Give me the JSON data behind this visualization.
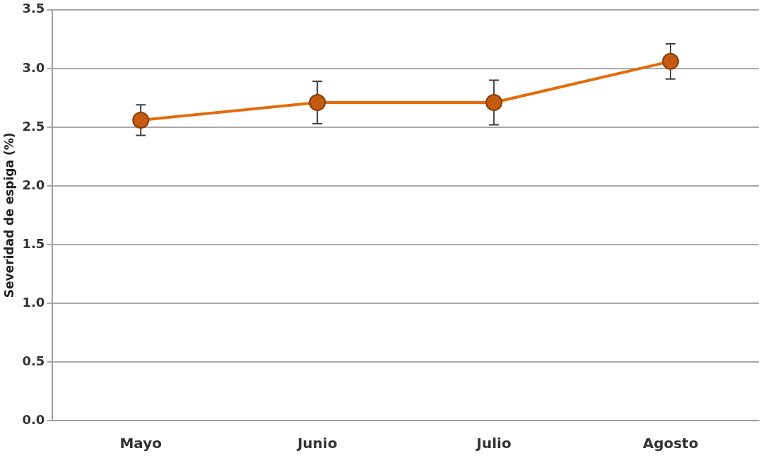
{
  "chart_data": {
    "type": "line",
    "ylabel": "Severidad de espiga (%)",
    "categories": [
      "Mayo",
      "Junio",
      "Julio",
      "Agosto"
    ],
    "series": [
      {
        "color": "#e46c0a",
        "values": [
          2.56,
          2.71,
          2.71,
          3.06
        ],
        "errors": [
          [
            2.43,
            2.69
          ],
          [
            2.53,
            2.89
          ],
          [
            2.52,
            2.9
          ],
          [
            2.91,
            3.21
          ]
        ]
      }
    ],
    "ylim": [
      0,
      3.5
    ],
    "yticks": [
      {
        "value": 0,
        "label": "0.0"
      },
      {
        "value": 0.5,
        "label": "0.5"
      },
      {
        "value": 1,
        "label": "1.0"
      },
      {
        "value": 1.5,
        "label": "1.5"
      },
      {
        "value": 2,
        "label": "2.0"
      },
      {
        "value": 2.5,
        "label": "2.5"
      },
      {
        "value": 3,
        "label": "3.0"
      },
      {
        "value": 3.5,
        "label": "3.5"
      }
    ],
    "grid": "y",
    "legend": false,
    "marker": "circle",
    "line_style": "solid"
  }
}
